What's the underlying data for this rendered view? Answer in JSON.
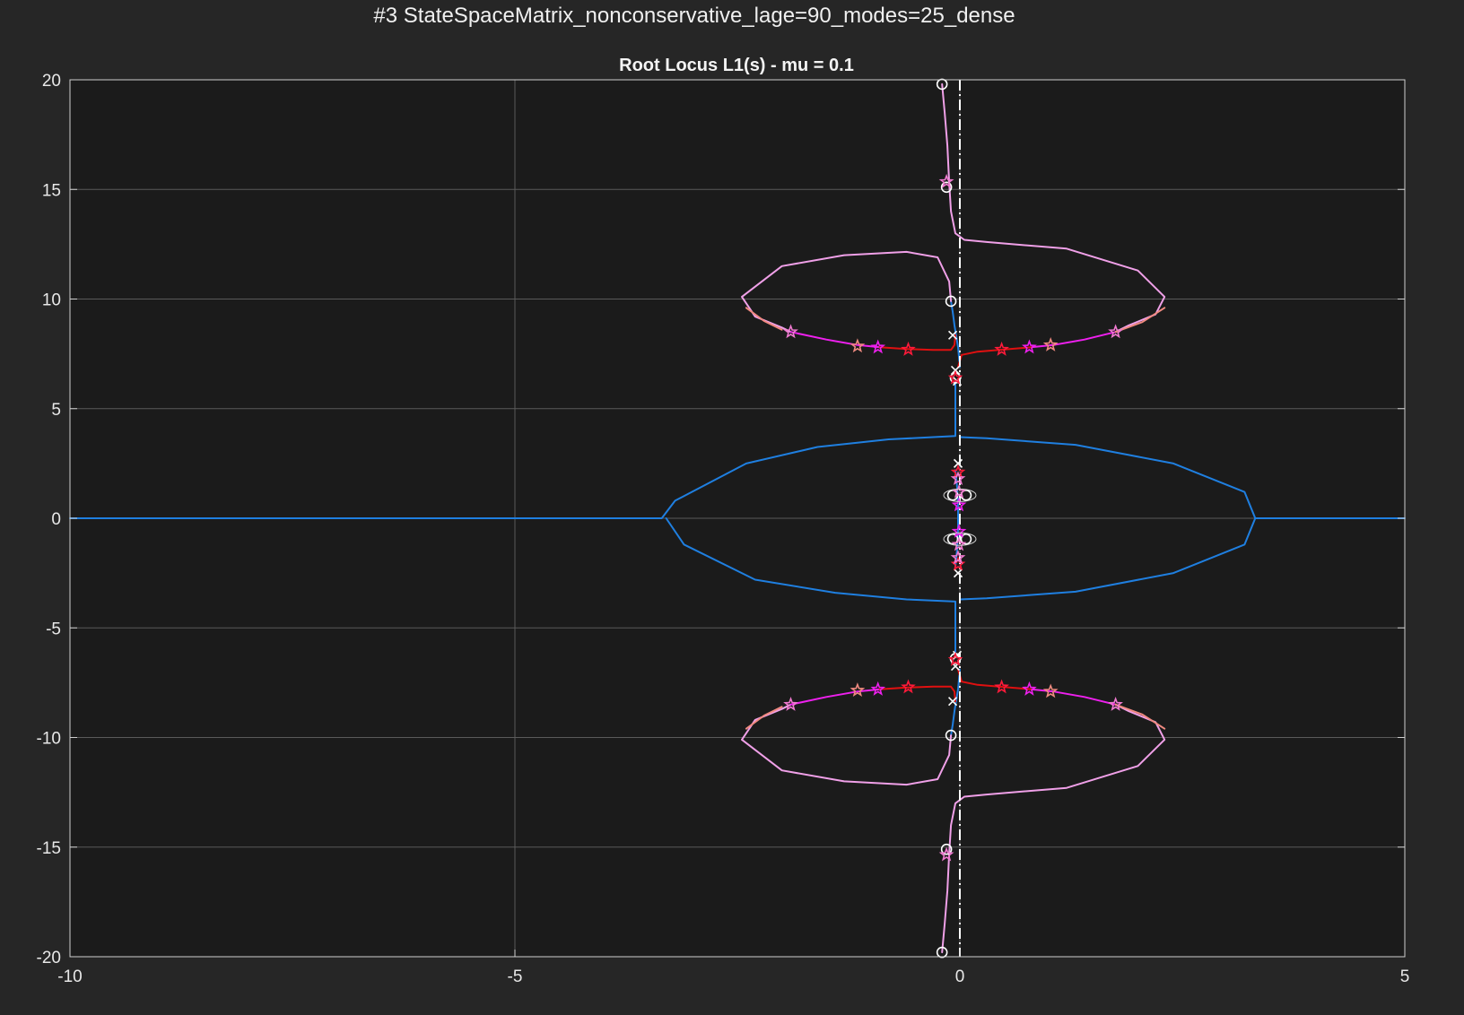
{
  "figure_title": "#3 StateSpaceMatrix_nonconservative_lage=90_modes=25_dense",
  "chart_data": {
    "type": "line",
    "title": "Root Locus L1(s) - mu = 0.1",
    "xlabel": "",
    "ylabel": "",
    "xlim": [
      -10,
      5
    ],
    "ylim": [
      -20,
      20
    ],
    "x_ticks": [
      -10,
      -5,
      0,
      5
    ],
    "y_ticks": [
      -20,
      -15,
      -10,
      -5,
      0,
      5,
      10,
      15,
      20
    ],
    "x_tick_labels": [
      "-10",
      "-5",
      "0",
      "5"
    ],
    "y_tick_labels": [
      "-20",
      "-15",
      "-10",
      "-5",
      "0",
      "5",
      "10",
      "15",
      "20"
    ],
    "grid": true,
    "imaginary_axis_line": {
      "x": 0,
      "style": "dash-dot",
      "color": "#ffffff"
    },
    "colors": {
      "background": "#262626",
      "axes_background": "#1b1b1b",
      "grid": "#5a5a5a",
      "blue_branch": "#1f7fe0",
      "pink_branch": "#f0a0e8",
      "red_branch": "#e01010",
      "salmon_branch": "#f08a80",
      "star_magenta": "#ee20ee",
      "star_red": "#ff1a3a",
      "star_salmon": "#f08a80",
      "star_pink": "#f07ad0",
      "marker_white": "#ffffff"
    },
    "series": [
      {
        "color": "blue",
        "style": "solid",
        "x": [
          -10,
          -5,
          -3.35,
          -3.2,
          -2.4,
          -1.6,
          -0.8,
          -0.05,
          -0.05
        ],
        "y": [
          0,
          0,
          0,
          0.8,
          2.5,
          3.25,
          3.6,
          3.75,
          6.2
        ]
      },
      {
        "color": "blue",
        "style": "solid",
        "x": [
          -3.3,
          -3.1,
          -2.3,
          -1.4,
          -0.6,
          -0.05,
          -0.05
        ],
        "y": [
          0,
          -1.2,
          -2.8,
          -3.4,
          -3.7,
          -3.8,
          -6.1
        ]
      },
      {
        "color": "blue",
        "style": "solid",
        "x": [
          0,
          0.3,
          1.3,
          2.4,
          3.2,
          3.32,
          3.32,
          5
        ],
        "y": [
          3.7,
          3.65,
          3.35,
          2.5,
          1.2,
          0,
          0,
          0
        ]
      },
      {
        "color": "blue",
        "style": "solid",
        "x": [
          0,
          0.3,
          1.3,
          2.4,
          3.2,
          3.32
        ],
        "y": [
          -3.7,
          -3.65,
          -3.35,
          -2.5,
          -1.2,
          0
        ]
      },
      {
        "color": "blue",
        "style": "solid",
        "x": [
          -0.1,
          -0.08,
          -0.06,
          -0.04,
          -0.02,
          0
        ],
        "y": [
          9.9,
          9.4,
          8.8,
          8.3,
          7.8,
          6.9
        ]
      },
      {
        "color": "blue",
        "style": "solid",
        "x": [
          -0.1,
          -0.08,
          -0.06,
          -0.04,
          -0.02,
          0
        ],
        "y": [
          -9.9,
          -9.4,
          -8.8,
          -8.3,
          -7.8,
          -6.9
        ]
      },
      {
        "color": "pink",
        "style": "solid",
        "x": [
          -0.2,
          -0.17,
          -0.14,
          -0.12,
          -0.1,
          -0.05,
          0.05,
          0.3,
          1.2,
          2.0,
          2.3,
          2.2,
          1.9,
          1.75
        ],
        "y": [
          19.8,
          18.5,
          17.0,
          15.3,
          14.0,
          13.0,
          12.7,
          12.6,
          12.3,
          11.3,
          10.1,
          9.3,
          8.8,
          8.5
        ]
      },
      {
        "color": "pink",
        "style": "solid",
        "x": [
          -0.1,
          -0.12,
          -0.25,
          -0.6,
          -1.3,
          -2.0,
          -2.45,
          -2.3,
          -2.0,
          -1.9
        ],
        "y": [
          9.9,
          10.8,
          11.9,
          12.15,
          12.0,
          11.5,
          10.1,
          9.2,
          8.7,
          8.5
        ]
      },
      {
        "color": "pink",
        "style": "solid",
        "x": [
          -0.2,
          -0.17,
          -0.14,
          -0.12,
          -0.1,
          -0.05,
          0.05,
          0.3,
          1.2,
          2.0,
          2.3,
          2.2,
          1.9,
          1.75
        ],
        "y": [
          -19.8,
          -18.5,
          -17.0,
          -15.3,
          -14.0,
          -13.0,
          -12.7,
          -12.6,
          -12.3,
          -11.3,
          -10.1,
          -9.3,
          -8.8,
          -8.5
        ]
      },
      {
        "color": "pink",
        "style": "solid",
        "x": [
          -0.1,
          -0.12,
          -0.25,
          -0.6,
          -1.3,
          -2.0,
          -2.45,
          -2.3,
          -2.0,
          -1.9
        ],
        "y": [
          -9.9,
          -10.8,
          -11.9,
          -12.15,
          -12.0,
          -11.5,
          -10.1,
          -9.2,
          -8.7,
          -8.5
        ]
      },
      {
        "color": "magenta",
        "style": "solid",
        "x": [
          -1.9,
          -1.5,
          -1.15,
          -0.9
        ],
        "y": [
          8.5,
          8.15,
          7.9,
          7.8
        ]
      },
      {
        "color": "magenta",
        "style": "solid",
        "x": [
          0.8,
          1.05,
          1.4,
          1.75
        ],
        "y": [
          7.8,
          7.9,
          8.15,
          8.5
        ]
      },
      {
        "color": "magenta",
        "style": "solid",
        "x": [
          -1.9,
          -1.5,
          -1.15,
          -0.9
        ],
        "y": [
          -8.5,
          -8.15,
          -7.9,
          -7.8
        ]
      },
      {
        "color": "magenta",
        "style": "solid",
        "x": [
          0.8,
          1.05,
          1.4,
          1.75
        ],
        "y": [
          -7.8,
          -7.9,
          -8.15,
          -8.5
        ]
      },
      {
        "color": "red",
        "style": "solid",
        "x": [
          -0.9,
          -0.6,
          -0.3,
          -0.1,
          -0.06,
          -0.05
        ],
        "y": [
          7.8,
          7.72,
          7.68,
          7.68,
          7.9,
          8.35
        ]
      },
      {
        "color": "red",
        "style": "solid",
        "x": [
          -0.02,
          0.02,
          0.2,
          0.5,
          0.8
        ],
        "y": [
          6.9,
          7.45,
          7.6,
          7.7,
          7.8
        ]
      },
      {
        "color": "red",
        "style": "solid",
        "x": [
          -0.9,
          -0.6,
          -0.3,
          -0.1,
          -0.06,
          -0.05
        ],
        "y": [
          -7.8,
          -7.72,
          -7.68,
          -7.68,
          -7.9,
          -8.35
        ]
      },
      {
        "color": "red",
        "style": "solid",
        "x": [
          -0.02,
          0.02,
          0.2,
          0.5,
          0.8
        ],
        "y": [
          -6.9,
          -7.45,
          -7.6,
          -7.7,
          -7.8
        ]
      },
      {
        "color": "salmon",
        "style": "solid",
        "x": [
          -2.0,
          -2.2,
          -2.4
        ],
        "y": [
          8.6,
          9.0,
          9.6
        ]
      },
      {
        "color": "salmon",
        "style": "solid",
        "x": [
          1.75,
          2.05,
          2.3
        ],
        "y": [
          8.5,
          8.95,
          9.6
        ]
      },
      {
        "color": "salmon",
        "style": "solid",
        "x": [
          -2.0,
          -2.2,
          -2.4
        ],
        "y": [
          -8.6,
          -9.0,
          -9.6
        ]
      },
      {
        "color": "salmon",
        "style": "solid",
        "x": [
          1.75,
          2.05,
          2.3
        ],
        "y": [
          -8.5,
          -8.95,
          -9.6
        ]
      },
      {
        "color": "blue",
        "style": "solid",
        "x": [
          -0.05,
          -0.03,
          -0.02,
          -0.02,
          -0.03,
          -0.05
        ],
        "y": [
          -2.2,
          -1.4,
          -0.5,
          0.5,
          1.4,
          2.2
        ]
      }
    ],
    "zeros": {
      "x": [
        -0.2,
        -0.15,
        -0.1,
        -0.05,
        -0.05,
        -0.1,
        -0.15,
        -0.2,
        -0.08,
        0.07,
        -0.08,
        0.07
      ],
      "y": [
        19.8,
        15.1,
        9.9,
        6.4,
        -6.4,
        -9.9,
        -15.1,
        -19.8,
        1.05,
        1.05,
        -0.95,
        -0.95
      ]
    },
    "poles": {
      "x": [
        -0.08,
        -0.05,
        -0.03,
        -0.02,
        -0.02,
        -0.03,
        -0.05,
        -0.08
      ],
      "y": [
        8.35,
        6.75,
        6.25,
        2.5,
        -2.5,
        -6.25,
        -6.75,
        -8.35
      ]
    },
    "stars": [
      {
        "x": -0.15,
        "y": 15.35,
        "color": "pink"
      },
      {
        "x": -0.15,
        "y": -15.35,
        "color": "pink"
      },
      {
        "x": -1.9,
        "y": 8.5,
        "color": "pink"
      },
      {
        "x": 1.75,
        "y": 8.5,
        "color": "pink"
      },
      {
        "x": -1.9,
        "y": -8.5,
        "color": "pink"
      },
      {
        "x": 1.75,
        "y": -8.5,
        "color": "pink"
      },
      {
        "x": -1.15,
        "y": 7.85,
        "color": "salmon"
      },
      {
        "x": 1.02,
        "y": 7.9,
        "color": "salmon"
      },
      {
        "x": -1.15,
        "y": -7.85,
        "color": "salmon"
      },
      {
        "x": 1.02,
        "y": -7.9,
        "color": "salmon"
      },
      {
        "x": -0.92,
        "y": 7.8,
        "color": "magenta"
      },
      {
        "x": 0.78,
        "y": 7.8,
        "color": "magenta"
      },
      {
        "x": -0.92,
        "y": -7.8,
        "color": "magenta"
      },
      {
        "x": 0.78,
        "y": -7.8,
        "color": "magenta"
      },
      {
        "x": -0.58,
        "y": 7.7,
        "color": "red"
      },
      {
        "x": 0.47,
        "y": 7.7,
        "color": "red"
      },
      {
        "x": -0.58,
        "y": -7.7,
        "color": "red"
      },
      {
        "x": 0.47,
        "y": -7.7,
        "color": "red"
      },
      {
        "x": -0.05,
        "y": 6.4,
        "color": "red"
      },
      {
        "x": -0.05,
        "y": -6.45,
        "color": "red"
      },
      {
        "x": -0.02,
        "y": 2.1,
        "color": "red"
      },
      {
        "x": -0.02,
        "y": 1.8,
        "color": "pink"
      },
      {
        "x": -0.02,
        "y": -2.1,
        "color": "red"
      },
      {
        "x": -0.02,
        "y": -1.8,
        "color": "pink"
      },
      {
        "x": -0.01,
        "y": 1.2,
        "color": "pink"
      },
      {
        "x": -0.01,
        "y": -1.2,
        "color": "pink"
      },
      {
        "x": -0.01,
        "y": 0.6,
        "color": "magenta"
      },
      {
        "x": -0.01,
        "y": -0.6,
        "color": "magenta"
      }
    ]
  }
}
